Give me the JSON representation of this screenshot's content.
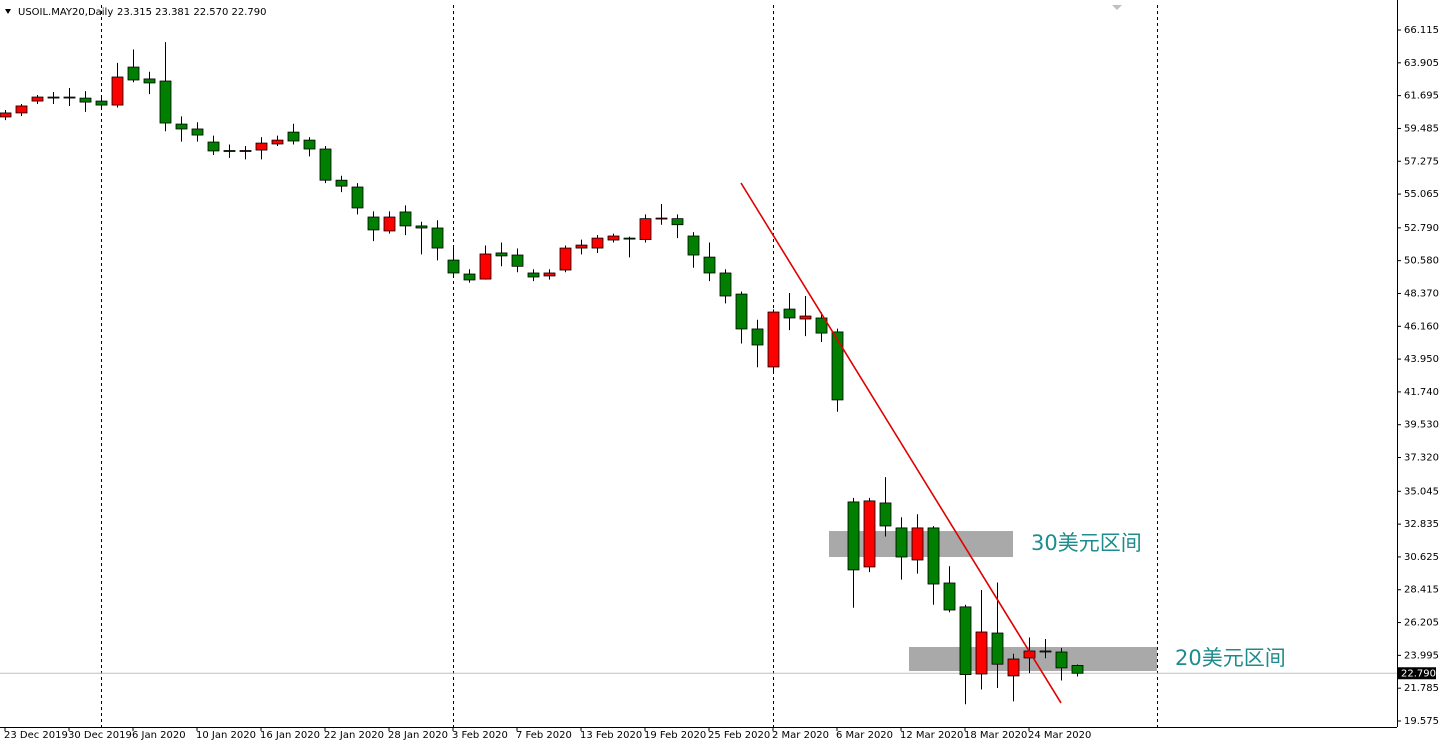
{
  "chart_data": {
    "type": "candlestick",
    "symbol": "USOIL.MAY20,Daily",
    "ohlc_text": "23.315 23.381 22.570 22.790",
    "categories": [
      "23 Dec 2019",
      null,
      null,
      null,
      "30 Dec 2019",
      null,
      null,
      null,
      "6 Jan 2020",
      null,
      null,
      null,
      "10 Jan 2020",
      null,
      null,
      null,
      "16 Jan 2020",
      null,
      null,
      null,
      "22 Jan 2020",
      null,
      null,
      null,
      "28 Jan 2020",
      null,
      null,
      null,
      "3 Feb 2020",
      null,
      null,
      null,
      "7 Feb 2020",
      null,
      null,
      null,
      "13 Feb 2020",
      null,
      null,
      null,
      "19 Feb 2020",
      null,
      null,
      null,
      "25 Feb 2020",
      null,
      null,
      null,
      "2 Mar 2020",
      null,
      null,
      null,
      "6 Mar 2020",
      null,
      null,
      null,
      "12 Mar 2020",
      null,
      null,
      null,
      "18 Mar 2020",
      null,
      null,
      null,
      "24 Mar 2020",
      null,
      null,
      null
    ],
    "open": [
      60.26,
      60.53,
      61.33,
      61.6,
      61.6,
      61.53,
      61.33,
      61.06,
      63.62,
      62.82,
      62.68,
      59.78,
      59.45,
      58.57,
      58.0,
      57.95,
      58.03,
      58.44,
      59.24,
      58.7,
      58.1,
      56.0,
      55.54,
      53.52,
      52.58,
      53.86,
      52.92,
      52.78,
      50.62,
      49.68,
      49.34,
      51.1,
      50.96,
      49.75,
      49.55,
      49.95,
      51.43,
      51.43,
      51.97,
      52.1,
      52.0,
      53.41,
      53.41,
      52.24,
      50.82,
      49.75,
      48.33,
      45.98,
      43.42,
      47.32,
      46.65,
      46.72,
      45.78,
      34.33,
      29.95,
      34.26,
      32.58,
      30.42,
      32.58,
      28.87,
      27.26,
      22.74,
      25.5,
      22.61,
      23.82,
      24.29,
      24.22,
      23.315
    ],
    "high": [
      60.73,
      61.13,
      61.74,
      61.94,
      62.21,
      62.0,
      61.6,
      63.9,
      64.8,
      63.3,
      65.3,
      60.3,
      59.9,
      59.0,
      58.4,
      58.3,
      58.9,
      59.0,
      59.8,
      58.9,
      58.3,
      56.3,
      55.8,
      53.9,
      53.9,
      54.3,
      53.2,
      53.3,
      51.5,
      50.0,
      51.6,
      51.8,
      51.4,
      50.0,
      50.0,
      51.6,
      52.0,
      52.3,
      52.4,
      52.2,
      53.7,
      54.4,
      53.7,
      52.5,
      51.8,
      50.0,
      48.5,
      46.6,
      47.3,
      48.4,
      48.2,
      47.1,
      46.0,
      34.6,
      34.6,
      36.0,
      33.3,
      33.5,
      32.7,
      30.0,
      27.4,
      28.4,
      28.9,
      24.1,
      25.2,
      25.1,
      24.5,
      23.381
    ],
    "low": [
      60.05,
      60.32,
      61.13,
      61.13,
      61.0,
      60.6,
      60.8,
      60.9,
      62.6,
      61.8,
      59.3,
      58.6,
      58.6,
      57.7,
      57.5,
      57.4,
      57.4,
      58.3,
      58.4,
      57.6,
      55.8,
      55.2,
      53.7,
      51.9,
      52.4,
      52.3,
      51.0,
      50.6,
      49.5,
      49.1,
      49.3,
      50.2,
      49.8,
      49.2,
      49.3,
      49.8,
      51.0,
      51.1,
      51.8,
      50.8,
      51.8,
      53.0,
      52.1,
      50.1,
      49.2,
      47.7,
      45.0,
      43.4,
      43.1,
      45.9,
      45.5,
      45.1,
      40.4,
      27.2,
      29.6,
      32.0,
      29.1,
      29.5,
      27.4,
      26.9,
      20.7,
      21.7,
      21.8,
      20.9,
      22.8,
      23.8,
      22.3,
      22.57
    ],
    "close": [
      60.53,
      61.0,
      61.6,
      61.57,
      61.55,
      61.26,
      61.06,
      62.95,
      62.75,
      62.55,
      59.85,
      59.45,
      59.04,
      57.97,
      57.95,
      58.0,
      58.5,
      58.7,
      58.64,
      58.1,
      56.0,
      55.6,
      54.13,
      52.65,
      53.52,
      52.92,
      52.78,
      51.43,
      49.75,
      49.28,
      51.03,
      50.9,
      50.2,
      49.48,
      49.75,
      51.43,
      51.63,
      52.1,
      52.24,
      52.05,
      53.41,
      53.45,
      53.0,
      50.96,
      49.75,
      48.2,
      45.98,
      44.9,
      47.12,
      46.72,
      46.85,
      45.7,
      41.2,
      29.75,
      34.4,
      32.71,
      30.62,
      32.58,
      28.8,
      27.05,
      22.7,
      25.57,
      23.4,
      23.75,
      24.29,
      24.25,
      23.15,
      22.79
    ],
    "up_color": "#ff0000",
    "down_color": "#008000",
    "ylim": [
      19.17,
      67.8
    ],
    "yticks": [
      19.575,
      21.785,
      23.995,
      26.205,
      28.415,
      30.625,
      32.835,
      35.045,
      {
        "value": 37.32,
        "label": "37.320"
      },
      {
        "value": 39.53,
        "label": "39.530"
      },
      {
        "value": 41.74,
        "label": "41.740"
      },
      {
        "value": 43.95,
        "label": "43.950"
      },
      {
        "value": 46.16,
        "label": "46.160"
      },
      {
        "value": 48.37,
        "label": "48.370"
      },
      {
        "value": 50.58,
        "label": "50.580"
      },
      {
        "value": 52.79,
        "label": "52.790"
      },
      55.065,
      57.275,
      59.485,
      61.695,
      63.905,
      66.115
    ],
    "current_price": {
      "value": 22.79,
      "label": "22.790"
    },
    "trendline": {
      "color": "#e00000",
      "from": [
        46,
        55.81
      ],
      "to": [
        66,
        20.79
      ]
    },
    "zones": [
      {
        "label": "30美元区间",
        "range": [
          30.62,
          32.37
        ],
        "from": 52,
        "to": 63
      },
      {
        "label": "20美元区间",
        "range": [
          22.94,
          24.56
        ],
        "from": 57,
        "to": 72
      }
    ]
  }
}
